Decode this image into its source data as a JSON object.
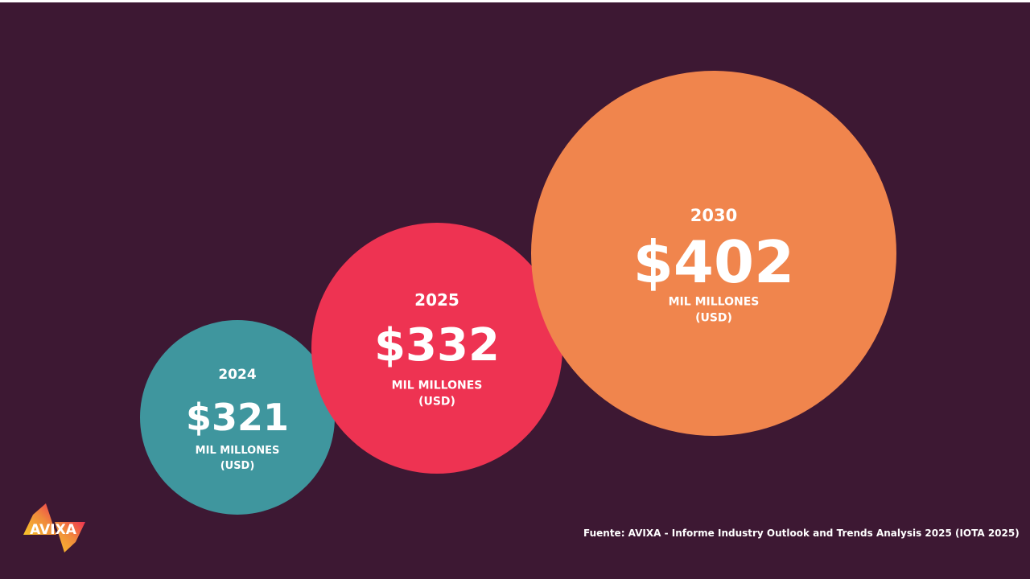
{
  "chart_data": {
    "type": "bubble",
    "categories": [
      "2024",
      "2025",
      "2030"
    ],
    "values": [
      321,
      332,
      402
    ],
    "value_labels": [
      "$321",
      "$332",
      "$402"
    ],
    "unit_line1": "MIL MILLONES",
    "unit_line2": "(USD)",
    "colors": [
      "#3f969e",
      "#ee3352",
      "#f0854d"
    ]
  },
  "footer": {
    "source": "Fuente: AVIXA - Informe Industry Outlook and Trends Analysis 2025 (IOTA 2025)"
  },
  "logo": {
    "text": "AVIXA"
  },
  "colors": {
    "background": "#3d1833"
  }
}
